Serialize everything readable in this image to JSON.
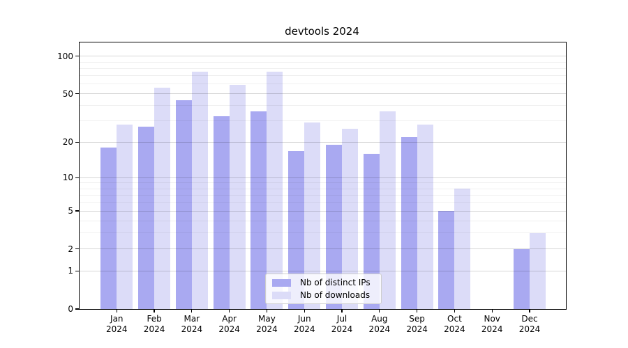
{
  "title": "devtools 2024",
  "colors": {
    "distinct_ips": "#a9a9f1",
    "downloads": "#dcdcf8",
    "axis": "#000000",
    "grid_major": "#d6d6d6",
    "grid_minor": "#f0f0f0"
  },
  "legend": {
    "items": [
      {
        "label": "Nb of distinct IPs",
        "color": "#a9a9f1"
      },
      {
        "label": "Nb of downloads",
        "color": "#dcdcf8"
      }
    ]
  },
  "y_axis": {
    "scale": "log1p",
    "tick_values": [
      100,
      50,
      20,
      10,
      5,
      2,
      1,
      0
    ],
    "tick_labels": [
      "100",
      "50",
      "20",
      "10",
      "5",
      "2",
      "1",
      "0"
    ],
    "minor_tick_values": [
      3,
      4,
      6,
      7,
      8,
      9,
      30,
      40,
      60,
      70,
      80,
      90
    ]
  },
  "x_axis": {
    "tick_labels_line1": [
      "Jan",
      "Feb",
      "Mar",
      "Apr",
      "May",
      "Jun",
      "Jul",
      "Aug",
      "Sep",
      "Oct",
      "Nov",
      "Dec"
    ],
    "tick_labels_line2": [
      "2024",
      "2024",
      "2024",
      "2024",
      "2024",
      "2024",
      "2024",
      "2024",
      "2024",
      "2024",
      "2024",
      "2024"
    ]
  },
  "chart_data": {
    "type": "bar",
    "title": "devtools 2024",
    "categories": [
      "Jan 2024",
      "Feb 2024",
      "Mar 2024",
      "Apr 2024",
      "May 2024",
      "Jun 2024",
      "Jul 2024",
      "Aug 2024",
      "Sep 2024",
      "Oct 2024",
      "Nov 2024",
      "Dec 2024"
    ],
    "series": [
      {
        "name": "Nb of distinct IPs",
        "color": "#a9a9f1",
        "values": [
          18,
          27,
          44,
          33,
          36,
          17,
          19,
          16,
          22,
          5,
          0,
          2
        ]
      },
      {
        "name": "Nb of downloads",
        "color": "#dcdcf8",
        "values": [
          28,
          56,
          75,
          59,
          75,
          29,
          26,
          36,
          28,
          8,
          0,
          3
        ]
      }
    ],
    "yscale": "log1p",
    "yticks": [
      0,
      1,
      2,
      5,
      10,
      20,
      50,
      100
    ],
    "ylim": [
      0,
      129
    ],
    "xlabel": "",
    "ylabel": "",
    "grid": true,
    "legend_position": "lower center"
  }
}
